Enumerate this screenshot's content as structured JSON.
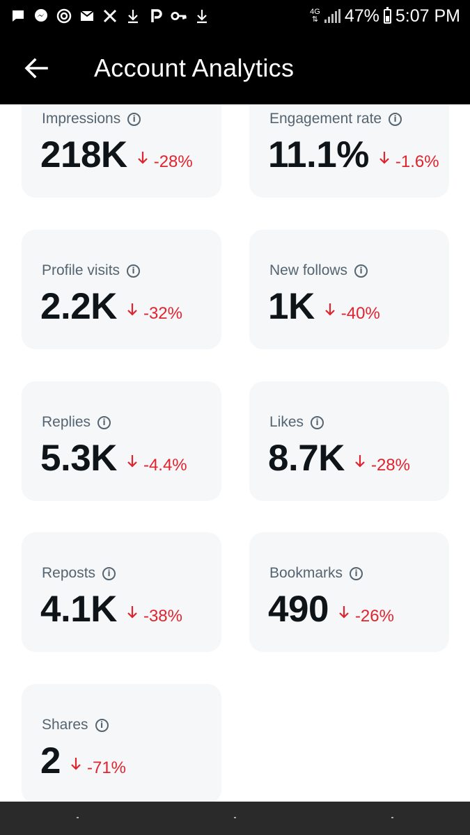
{
  "status_bar": {
    "notification_icons": [
      "chat-icon",
      "messenger-icon",
      "timer-icon",
      "mail-icon",
      "x-logo-icon",
      "download-icon",
      "p-app-icon",
      "key-icon",
      "download-icon"
    ],
    "network": "4G",
    "battery": "47%",
    "battery_level": 0.47,
    "time": "5:07 PM"
  },
  "header": {
    "title": "Account Analytics"
  },
  "metrics": [
    {
      "label": "Impressions",
      "value": "218K",
      "change": "-28%"
    },
    {
      "label": "Engagement rate",
      "value": "11.1%",
      "change": "-1.6%"
    },
    {
      "label": "Profile visits",
      "value": "2.2K",
      "change": "-32%"
    },
    {
      "label": "New follows",
      "value": "1K",
      "change": "-40%"
    },
    {
      "label": "Replies",
      "value": "5.3K",
      "change": "-4.4%"
    },
    {
      "label": "Likes",
      "value": "8.7K",
      "change": "-28%"
    },
    {
      "label": "Reposts",
      "value": "4.1K",
      "change": "-38%"
    },
    {
      "label": "Bookmarks",
      "value": "490",
      "change": "-26%"
    },
    {
      "label": "Shares",
      "value": "2",
      "change": "-71%"
    }
  ],
  "colors": {
    "negative": "#e0242f",
    "card_bg": "#f6f7f8",
    "label": "#546470",
    "value": "#0f1419"
  }
}
